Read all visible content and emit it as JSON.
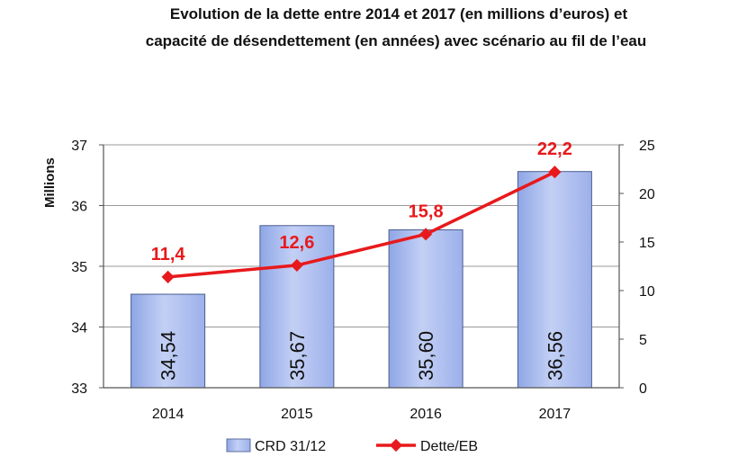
{
  "chart_data": {
    "type": "bar",
    "title": "Evolution de la dette entre 2014 et 2017 (en millions d’euros) et capacité de désendettement (en années) avec scénario au fil de l’eau",
    "title_lines": [
      "Evolution de la dette entre 2014 et 2017 (en millions d’euros) et",
      "capacité de désendettement (en années) avec scénario au fil de l’eau"
    ],
    "ylabel": "Millions",
    "categories": [
      "2014",
      "2015",
      "2016",
      "2017"
    ],
    "series": [
      {
        "name": "CRD 31/12",
        "type": "bar",
        "axis": "left",
        "values": [
          34.54,
          35.67,
          35.6,
          36.56
        ],
        "labels": [
          "34,54",
          "35,67",
          "35,60",
          "36,56"
        ],
        "color": "#aebfee"
      },
      {
        "name": "Dette/EB",
        "type": "line",
        "axis": "right",
        "values": [
          11.4,
          12.6,
          15.8,
          22.2
        ],
        "labels": [
          "11,4",
          "12,6",
          "15,8",
          "22,2"
        ],
        "color": "#e8191c"
      }
    ],
    "y_left": {
      "min": 33,
      "max": 37,
      "ticks": [
        "33",
        "34",
        "35",
        "36",
        "37"
      ]
    },
    "y_right": {
      "min": 0,
      "max": 25,
      "ticks": [
        "0",
        "5",
        "10",
        "15",
        "20",
        "25"
      ]
    },
    "grid": true,
    "legend": "bottom"
  }
}
